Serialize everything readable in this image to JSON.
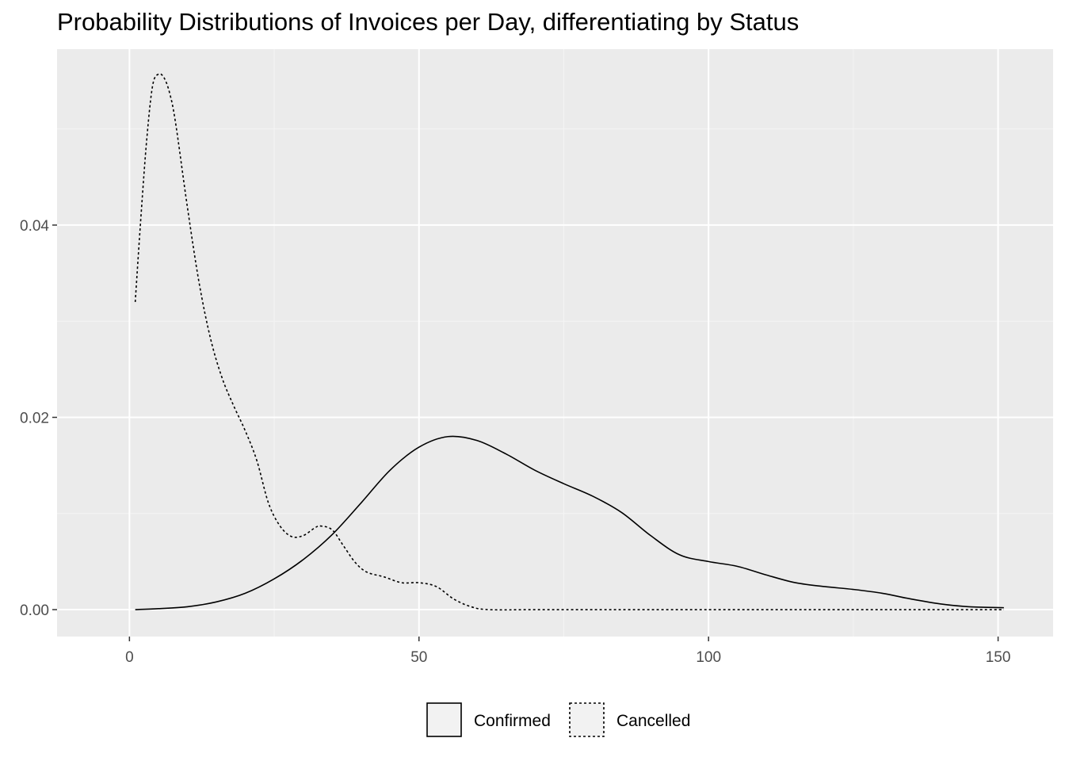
{
  "chart_data": {
    "type": "line",
    "title": "Probability Distributions of Invoices per Day, differentiating by Status",
    "xlabel": "",
    "ylabel": "",
    "xlim": [
      -12.5,
      159.5
    ],
    "ylim": [
      -0.0028,
      0.0583
    ],
    "x_ticks": [
      0,
      50,
      100,
      150
    ],
    "x_tick_labels": [
      "0",
      "50",
      "100",
      "150"
    ],
    "y_ticks": [
      0.0,
      0.02,
      0.04
    ],
    "y_tick_labels": [
      "0.00",
      "0.02",
      "0.04"
    ],
    "grid": true,
    "legend_position": "bottom",
    "series": [
      {
        "name": "Confirmed",
        "line_style": "solid",
        "color": "#000000",
        "x": [
          1,
          5,
          10,
          15,
          20,
          25,
          30,
          35,
          40,
          45,
          50,
          55,
          60,
          65,
          70,
          75,
          80,
          85,
          90,
          95,
          100,
          105,
          110,
          115,
          120,
          125,
          130,
          135,
          140,
          145,
          151
        ],
        "y": [
          0.0,
          0.0001,
          0.0003,
          0.0008,
          0.0017,
          0.0032,
          0.0052,
          0.0078,
          0.0111,
          0.0145,
          0.0169,
          0.018,
          0.0176,
          0.0162,
          0.0145,
          0.0131,
          0.0118,
          0.0101,
          0.0077,
          0.0057,
          0.005,
          0.0045,
          0.0036,
          0.0028,
          0.0024,
          0.0021,
          0.0017,
          0.0011,
          0.0006,
          0.0003,
          0.0002
        ]
      },
      {
        "name": "Cancelled",
        "line_style": "dotted",
        "color": "#000000",
        "x": [
          1,
          2,
          3,
          4,
          5,
          6,
          7,
          8,
          10,
          12,
          14,
          16,
          18,
          20,
          22,
          24,
          26,
          28,
          30,
          32,
          33,
          35,
          37,
          39,
          41,
          44,
          47,
          50,
          53,
          56,
          59,
          62,
          70,
          80,
          100,
          120,
          140,
          151
        ],
        "y": [
          0.032,
          0.041,
          0.049,
          0.0545,
          0.0557,
          0.0553,
          0.0536,
          0.0505,
          0.0419,
          0.0341,
          0.0282,
          0.0241,
          0.0212,
          0.0186,
          0.0155,
          0.0111,
          0.0087,
          0.0076,
          0.0077,
          0.0085,
          0.0087,
          0.0083,
          0.0066,
          0.0049,
          0.0039,
          0.0034,
          0.0028,
          0.0028,
          0.0024,
          0.0011,
          0.0003,
          0.0,
          0.0,
          0.0,
          0.0,
          0.0,
          0.0,
          0.0
        ]
      }
    ]
  },
  "legend": {
    "items": [
      {
        "label": "Confirmed",
        "line_style": "solid"
      },
      {
        "label": "Cancelled",
        "line_style": "dotted"
      }
    ]
  },
  "colors": {
    "panel_background": "#ebebeb",
    "grid_major": "#ffffff",
    "grid_minor": "#f4f4f4",
    "tick_text": "#4d4d4d",
    "legend_key_fill": "#f2f2f2"
  }
}
